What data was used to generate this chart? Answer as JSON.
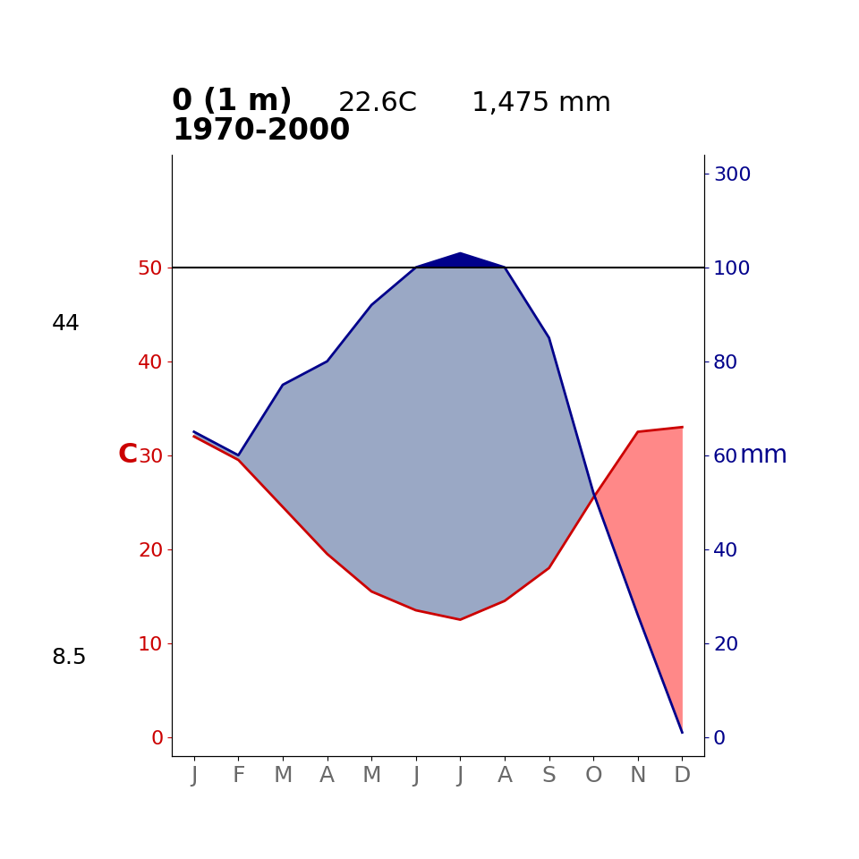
{
  "title_line1": "0 (1 m)",
  "title_line2": "1970-2000",
  "subtitle_temp": "22.6C",
  "subtitle_prec": "1,475 mm",
  "months": [
    "J",
    "F",
    "M",
    "A",
    "M",
    "J",
    "J",
    "A",
    "S",
    "O",
    "N",
    "D"
  ],
  "temperature": [
    32.0,
    29.5,
    24.5,
    19.5,
    15.5,
    13.5,
    12.5,
    14.5,
    18.0,
    25.5,
    32.5,
    33.0
  ],
  "precipitation": [
    65,
    60,
    75,
    80,
    92,
    100,
    130,
    100,
    85,
    52,
    26,
    1
  ],
  "max_temp_hottest": 44,
  "min_temp_coldest": 8.5,
  "ylabel_left": "C",
  "ylabel_right": "mm",
  "temp_color": "#cc0000",
  "prec_color": "#00008B",
  "humid_fill_color": "#8899bb",
  "arid_fill_color": "#ff8888",
  "dark_blue_fill": "#00008B",
  "background_color": "#ffffff",
  "left_axis_ticks": [
    0,
    10,
    20,
    30,
    40,
    50
  ],
  "right_axis_ticks": [
    0,
    20,
    40,
    60,
    80,
    100,
    300
  ],
  "title_fontsize": 24,
  "subtitle_fontsize": 22,
  "axis_label_fontsize": 20,
  "tick_fontsize": 16,
  "annotation_fontsize": 18
}
